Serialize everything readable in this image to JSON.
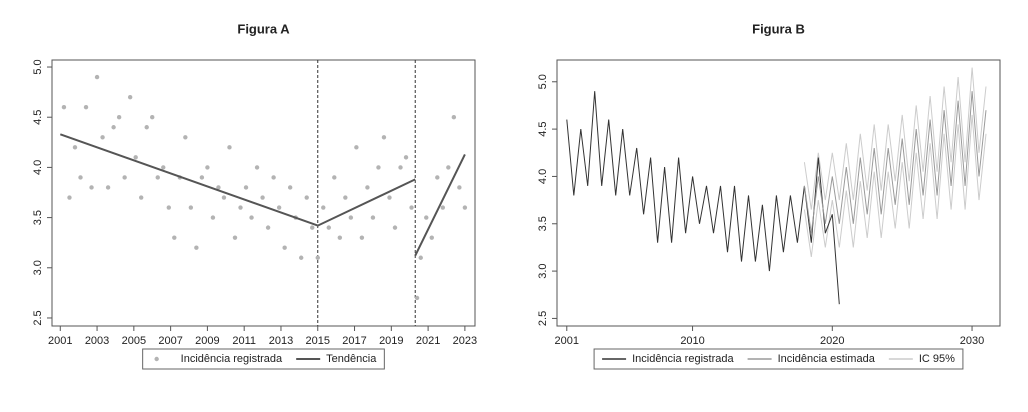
{
  "chart_data": [
    {
      "type": "scatter",
      "title": "Figura A",
      "xlim": [
        2000.55,
        2023.55
      ],
      "xticks": [
        2001,
        2003,
        2005,
        2007,
        2009,
        2011,
        2013,
        2015,
        2017,
        2019,
        2021,
        2023
      ],
      "ylim": [
        2.42,
        5.07
      ],
      "yticks": [
        2.5,
        {
          "value": 3,
          "label": "3.0"
        },
        3.5,
        {
          "value": 4,
          "label": "4.0"
        },
        4.5,
        {
          "value": 5,
          "label": "5.0"
        }
      ],
      "vlines": [
        2015,
        2020.3
      ],
      "legend": "bottom",
      "series": [
        {
          "name": "Incidência registrada",
          "type": "scatter",
          "color": "#b3b3b3",
          "x": [
            2001.2,
            2001.5,
            2001.8,
            2002.1,
            2002.4,
            2002.7,
            2003.0,
            2003.3,
            2003.6,
            2003.9,
            2004.2,
            2004.5,
            2004.8,
            2005.1,
            2005.4,
            2005.7,
            2006.0,
            2006.3,
            2006.6,
            2006.9,
            2007.2,
            2007.5,
            2007.8,
            2008.1,
            2008.4,
            2008.7,
            2009.0,
            2009.3,
            2009.6,
            2009.9,
            2010.2,
            2010.5,
            2010.8,
            2011.1,
            2011.4,
            2011.7,
            2012.0,
            2012.3,
            2012.6,
            2012.9,
            2013.2,
            2013.5,
            2013.8,
            2014.1,
            2014.4,
            2014.7,
            2015.0,
            2015.3,
            2015.6,
            2015.9,
            2016.2,
            2016.5,
            2016.8,
            2017.1,
            2017.4,
            2017.7,
            2018.0,
            2018.3,
            2018.6,
            2018.9,
            2019.2,
            2019.5,
            2019.8,
            2020.1,
            2020.4,
            2020.6,
            2020.9,
            2021.2,
            2021.5,
            2021.8,
            2022.1,
            2022.4,
            2022.7,
            2023.0
          ],
          "values": [
            4.6,
            3.7,
            4.2,
            3.9,
            4.6,
            3.8,
            4.9,
            4.3,
            3.8,
            4.4,
            4.5,
            3.9,
            4.7,
            4.1,
            3.7,
            4.4,
            4.5,
            3.9,
            4.0,
            3.6,
            3.3,
            3.9,
            4.3,
            3.6,
            3.2,
            3.9,
            4.0,
            3.5,
            3.8,
            3.7,
            4.2,
            3.3,
            3.6,
            3.8,
            3.5,
            4.0,
            3.7,
            3.4,
            3.9,
            3.6,
            3.2,
            3.8,
            3.5,
            3.1,
            3.7,
            3.4,
            3.1,
            3.6,
            3.4,
            3.9,
            3.3,
            3.7,
            3.5,
            4.2,
            3.3,
            3.8,
            3.5,
            4.0,
            4.3,
            3.7,
            3.4,
            4.0,
            4.1,
            3.6,
            2.7,
            3.1,
            3.5,
            3.3,
            3.9,
            3.6,
            4.0,
            4.5,
            3.8,
            3.6
          ]
        },
        {
          "name": "Tendência",
          "type": "line",
          "color": "#555555",
          "x": [
            2001,
            2015,
            2020.3,
            2020.3,
            2020.3,
            2023
          ],
          "values": [
            4.33,
            3.42,
            3.88,
            null,
            3.12,
            4.13
          ]
        }
      ]
    },
    {
      "type": "line",
      "title": "Figura B",
      "xlim": [
        2000.3,
        2032.0
      ],
      "xticks": [
        2001,
        2010,
        2020,
        2030
      ],
      "ylim": [
        2.42,
        5.23
      ],
      "yticks": [
        2.5,
        {
          "value": 3,
          "label": "3.0"
        },
        3.5,
        {
          "value": 4,
          "label": "4.0"
        },
        4.5,
        {
          "value": 5,
          "label": "5.0"
        }
      ],
      "legend": "bottom",
      "series": [
        {
          "name": "Incidência registrada",
          "type": "line",
          "color": "#333333",
          "x": [
            2001,
            2001.5,
            2002,
            2002.5,
            2003,
            2003.5,
            2004,
            2004.5,
            2005,
            2005.5,
            2006,
            2006.5,
            2007,
            2007.5,
            2008,
            2008.5,
            2009,
            2009.5,
            2010,
            2010.5,
            2011,
            2011.5,
            2012,
            2012.5,
            2013,
            2013.5,
            2014,
            2014.5,
            2015,
            2015.5,
            2016,
            2016.5,
            2017,
            2017.5,
            2018,
            2018.5,
            2019,
            2019.5,
            2020,
            2020.5
          ],
          "values": [
            4.6,
            3.8,
            4.5,
            3.9,
            4.9,
            3.9,
            4.6,
            3.8,
            4.5,
            3.8,
            4.3,
            3.6,
            4.2,
            3.3,
            4.1,
            3.3,
            4.2,
            3.4,
            4.0,
            3.5,
            3.9,
            3.4,
            3.9,
            3.2,
            3.9,
            3.1,
            3.8,
            3.1,
            3.7,
            3.0,
            3.8,
            3.2,
            3.8,
            3.3,
            3.9,
            3.3,
            4.2,
            3.4,
            3.6,
            2.65
          ]
        },
        {
          "name": "Incidência estimada",
          "type": "line",
          "color": "#9a9a9a",
          "x": [
            2018,
            2018.5,
            2019,
            2019.5,
            2020,
            2020.5,
            2021,
            2021.5,
            2022,
            2022.5,
            2023,
            2023.5,
            2024,
            2024.5,
            2025,
            2025.5,
            2026,
            2026.5,
            2027,
            2027.5,
            2028,
            2028.5,
            2029,
            2029.5,
            2030,
            2030.5,
            2031
          ],
          "values": [
            3.9,
            3.4,
            4.0,
            3.5,
            4.0,
            3.5,
            4.1,
            3.5,
            4.2,
            3.6,
            4.3,
            3.6,
            4.3,
            3.7,
            4.4,
            3.7,
            4.5,
            3.8,
            4.6,
            3.8,
            4.7,
            3.9,
            4.8,
            3.9,
            4.9,
            4.0,
            4.7
          ]
        },
        {
          "name": "IC 95%",
          "type": "band",
          "color": "#cccccc",
          "x": [
            2018,
            2018.5,
            2019,
            2019.5,
            2020,
            2020.5,
            2021,
            2021.5,
            2022,
            2022.5,
            2023,
            2023.5,
            2024,
            2024.5,
            2025,
            2025.5,
            2026,
            2026.5,
            2027,
            2027.5,
            2028,
            2028.5,
            2029,
            2029.5,
            2030,
            2030.5,
            2031
          ],
          "upper": [
            4.15,
            3.65,
            4.25,
            3.75,
            4.25,
            3.75,
            4.35,
            3.75,
            4.45,
            3.85,
            4.55,
            3.85,
            4.55,
            3.95,
            4.65,
            3.95,
            4.75,
            4.05,
            4.85,
            4.05,
            4.95,
            4.15,
            5.05,
            4.15,
            5.15,
            4.25,
            4.95
          ],
          "lower": [
            3.65,
            3.15,
            3.75,
            3.25,
            3.75,
            3.25,
            3.85,
            3.25,
            3.95,
            3.35,
            4.05,
            3.35,
            4.05,
            3.45,
            4.15,
            3.45,
            4.25,
            3.55,
            4.35,
            3.55,
            4.45,
            3.65,
            4.55,
            3.65,
            4.65,
            3.75,
            4.45
          ]
        }
      ]
    }
  ]
}
